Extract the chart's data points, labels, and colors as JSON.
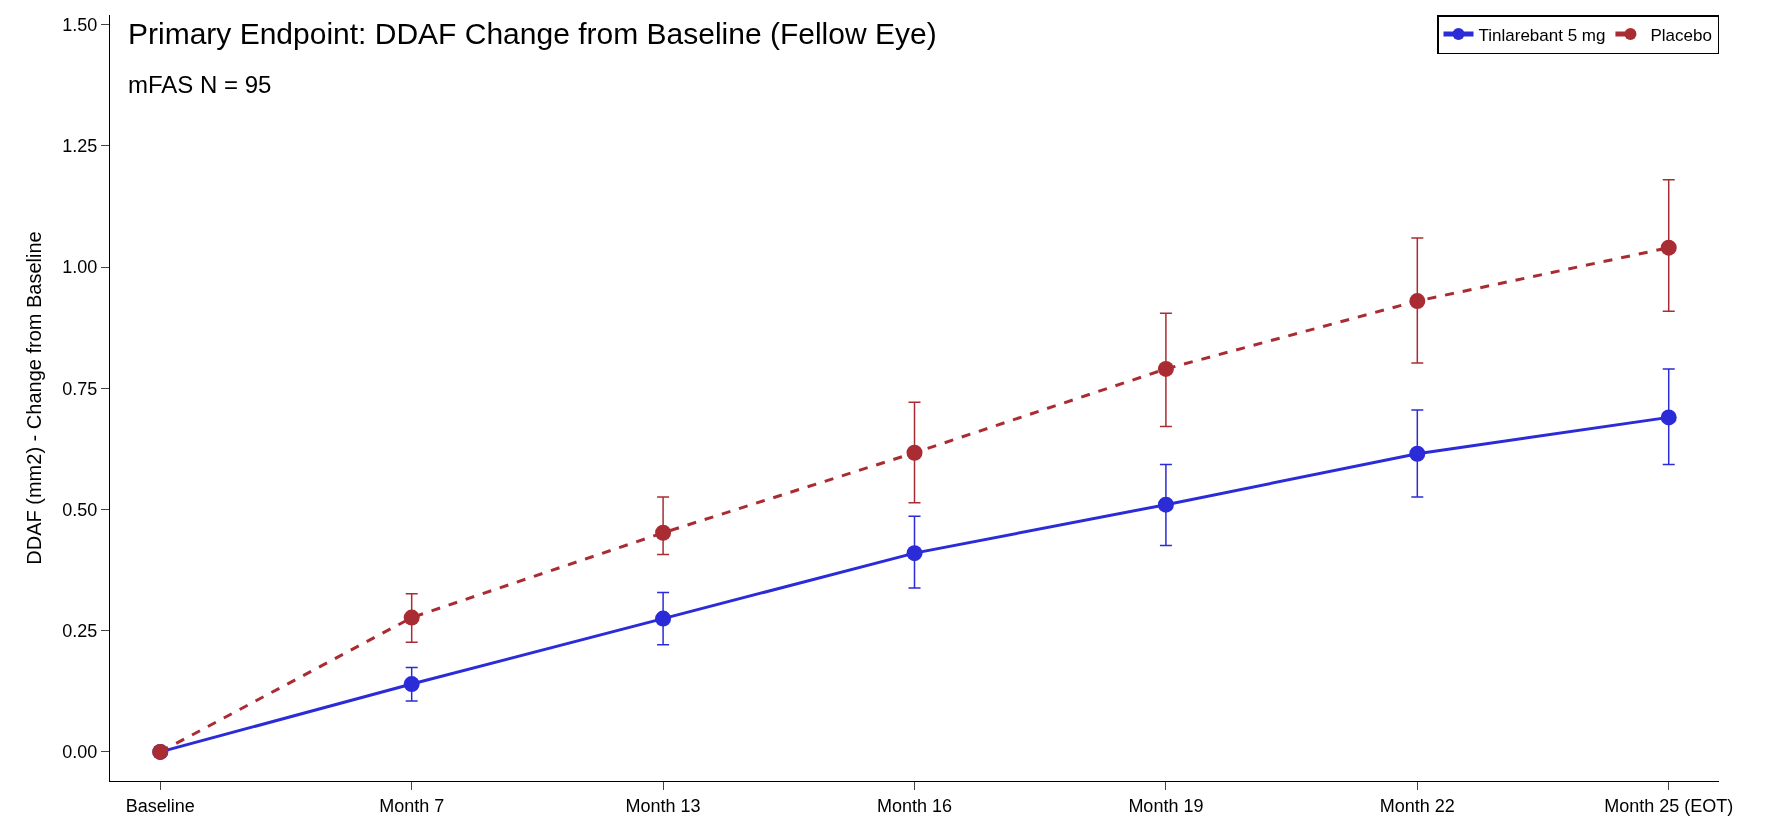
{
  "chart_data": {
    "type": "line",
    "title": "Primary Endpoint: DDAF Change from Baseline (Fellow Eye)",
    "subtitle": "mFAS N = 95",
    "ylabel": "DDAF (mm2) - Change from Baseline",
    "categories": [
      "Baseline",
      "Month 7",
      "Month 13",
      "Month 16",
      "Month 19",
      "Month 22",
      "Month 25 (EOT)"
    ],
    "series": [
      {
        "name": "Tinlarebant 5 mg",
        "color": "#2b2bd8",
        "line_style": "solid",
        "values": [
          0,
          0.14,
          0.275,
          0.41,
          0.51,
          0.615,
          0.69
        ],
        "errors": [
          null,
          [
            0.105,
            0.174
          ],
          [
            0.221,
            0.329
          ],
          [
            0.338,
            0.486
          ],
          [
            0.426,
            0.593
          ],
          [
            0.526,
            0.705
          ],
          [
            0.593,
            0.79
          ]
        ]
      },
      {
        "name": "Placebo",
        "color": "#aa2c33",
        "line_style": "dashed",
        "values": [
          0,
          0.277,
          0.452,
          0.617,
          0.79,
          0.93,
          1.04
        ],
        "errors": [
          null,
          [
            0.226,
            0.326
          ],
          [
            0.407,
            0.526
          ],
          [
            0.514,
            0.721
          ],
          [
            0.671,
            0.905
          ],
          [
            0.802,
            1.06
          ],
          [
            0.909,
            1.18
          ]
        ]
      }
    ],
    "ylim": [
      -0.06,
      1.52
    ],
    "yticks": [
      {
        "value": 0,
        "label": "0.00"
      },
      {
        "value": 0.25,
        "label": "0.25"
      },
      {
        "value": 0.5,
        "label": "0.50"
      },
      {
        "value": 0.75,
        "label": "0.75"
      },
      {
        "value": 1,
        "label": "1.00"
      },
      {
        "value": 1.25,
        "label": "1.25"
      },
      {
        "value": 1.5,
        "label": "1.50"
      }
    ],
    "legend": "top right",
    "marker": "circle"
  }
}
